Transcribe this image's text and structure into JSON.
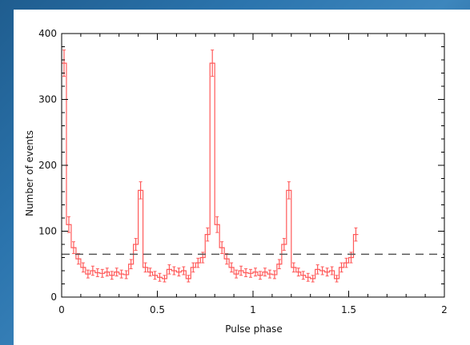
{
  "chart_data": {
    "type": "line",
    "xlabel": "Pulse phase",
    "ylabel": "Number of events",
    "xlim": [
      0,
      2
    ],
    "ylim": [
      0,
      400
    ],
    "x_ticks": [
      "0",
      "0.5",
      "1",
      "1.5",
      "2"
    ],
    "y_ticks": [
      "0",
      "100",
      "200",
      "300",
      "400"
    ],
    "grid": false,
    "colors": {
      "histogram": "#ff5a5a",
      "baseline": "#555555",
      "axes": "#000000"
    },
    "baseline": 65,
    "bin_width": 0.025,
    "series": [
      {
        "values": [
          355,
          110,
          75,
          58,
          45,
          35,
          40,
          37,
          36,
          38,
          33,
          38,
          35,
          34,
          50,
          80,
          162,
          45,
          38,
          33,
          30,
          28,
          42,
          40,
          38,
          40,
          28,
          45,
          52,
          60,
          95,
          355,
          110,
          75,
          58,
          45,
          35,
          40,
          37,
          36,
          38,
          33,
          38,
          35,
          34,
          50,
          80,
          162,
          45,
          38,
          33,
          30,
          28,
          42,
          40,
          38,
          40,
          28,
          45,
          52,
          60,
          95
        ],
        "errors": [
          20,
          12,
          9,
          8,
          7,
          6,
          7,
          6,
          6,
          6,
          6,
          6,
          6,
          6,
          7,
          9,
          13,
          7,
          6,
          6,
          6,
          5,
          7,
          6,
          6,
          6,
          5,
          7,
          7,
          8,
          10,
          20,
          12,
          9,
          8,
          7,
          6,
          7,
          6,
          6,
          6,
          6,
          6,
          6,
          6,
          7,
          9,
          13,
          7,
          6,
          6,
          6,
          5,
          7,
          6,
          6,
          6,
          5,
          7,
          7,
          8,
          10
        ]
      }
    ]
  }
}
